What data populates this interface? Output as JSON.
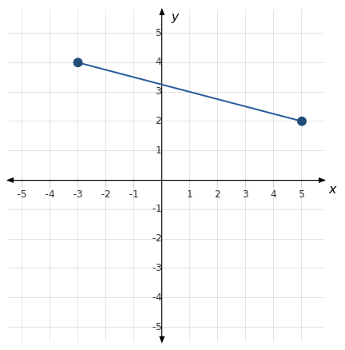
{
  "chart_data": {
    "type": "line",
    "x": [
      -3,
      5
    ],
    "values": [
      4,
      2
    ],
    "color": "#2E5E9E",
    "colors": [
      "#1F4E79",
      "#1F4E79"
    ],
    "marker": "circle",
    "xlim": [
      -5.5,
      5.8
    ],
    "ylim": [
      -5.5,
      5.8
    ],
    "xticks": [
      -5,
      -4,
      -3,
      -2,
      -1,
      1,
      2,
      3,
      4,
      5
    ],
    "yticks": [
      -5,
      -4,
      -3,
      -2,
      -1,
      1,
      2,
      3,
      4,
      5
    ],
    "xlabel": "x",
    "ylabel": "y",
    "grid": true
  }
}
